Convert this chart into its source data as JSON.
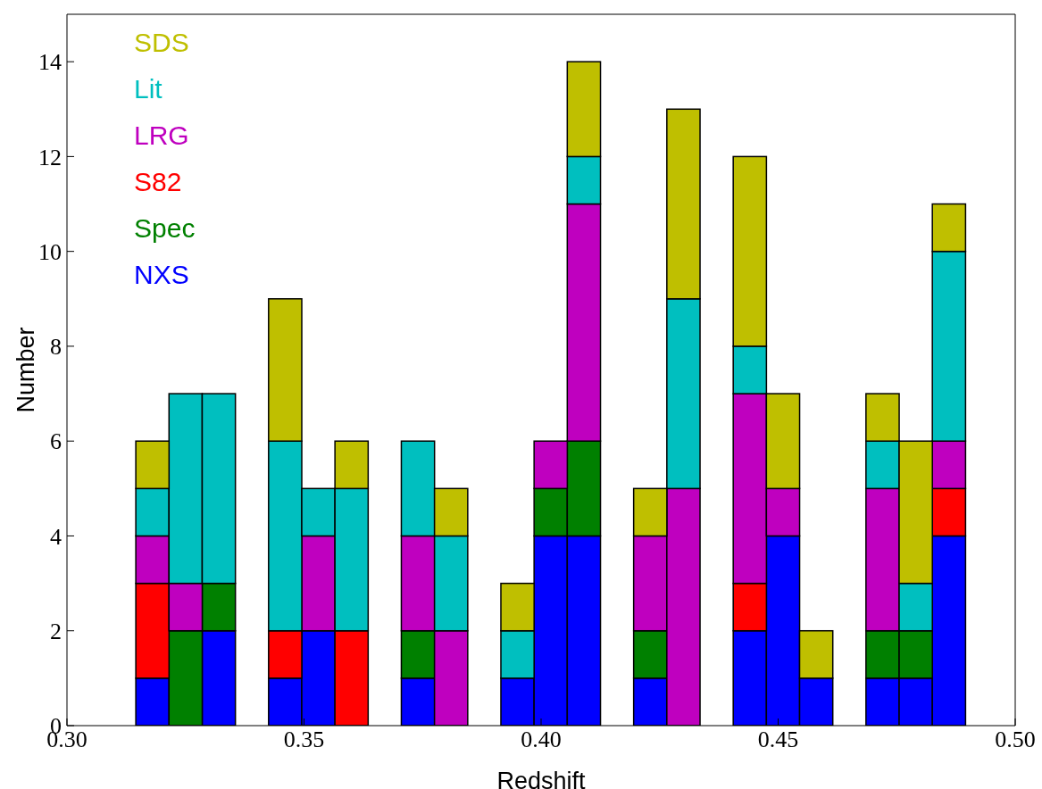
{
  "chart_data": {
    "type": "bar",
    "xlabel": "Redshift",
    "ylabel": "Number",
    "x": [
      0.318,
      0.325,
      0.332,
      0.346,
      0.353,
      0.36,
      0.374,
      0.381,
      0.395,
      0.402,
      0.409,
      0.423,
      0.43,
      0.444,
      0.451,
      0.458,
      0.472,
      0.479,
      0.486
    ],
    "stacked": true,
    "series": [
      {
        "name": "NXS",
        "color": "#0000ff",
        "values": [
          1,
          0,
          2,
          1,
          2,
          0,
          1,
          0,
          1,
          4,
          4,
          1,
          0,
          2,
          4,
          1,
          1,
          1,
          4
        ]
      },
      {
        "name": "Spec",
        "color": "#008000",
        "values": [
          0,
          2,
          1,
          0,
          0,
          0,
          1,
          0,
          0,
          1,
          2,
          1,
          0,
          0,
          0,
          0,
          1,
          1,
          0
        ]
      },
      {
        "name": "S82",
        "color": "#ff0000",
        "values": [
          2,
          0,
          0,
          1,
          0,
          2,
          0,
          0,
          0,
          0,
          0,
          0,
          0,
          1,
          0,
          0,
          0,
          0,
          1
        ]
      },
      {
        "name": "LRG",
        "color": "#bf00bf",
        "values": [
          1,
          1,
          0,
          0,
          2,
          0,
          2,
          2,
          0,
          1,
          5,
          2,
          5,
          4,
          1,
          0,
          3,
          0,
          1
        ]
      },
      {
        "name": "Lit",
        "color": "#00bfbf",
        "values": [
          1,
          4,
          4,
          4,
          1,
          3,
          2,
          2,
          1,
          0,
          1,
          0,
          4,
          1,
          0,
          0,
          1,
          1,
          4
        ]
      },
      {
        "name": "SDS",
        "color": "#bfbf00",
        "values": [
          1,
          0,
          0,
          3,
          0,
          1,
          0,
          1,
          1,
          0,
          2,
          1,
          4,
          4,
          2,
          1,
          1,
          3,
          1
        ]
      }
    ],
    "xlim": [
      0.3,
      0.5
    ],
    "xticks": [
      {
        "value": 0.3,
        "label": "0.30"
      },
      {
        "value": 0.35,
        "label": "0.35"
      },
      {
        "value": 0.4,
        "label": "0.40"
      },
      {
        "value": 0.45,
        "label": "0.45"
      },
      {
        "value": 0.5,
        "label": "0.50"
      }
    ],
    "ylim": [
      0,
      15
    ],
    "yticks": [
      0,
      2,
      4,
      6,
      8,
      10,
      12,
      14
    ],
    "legend": "top left"
  }
}
